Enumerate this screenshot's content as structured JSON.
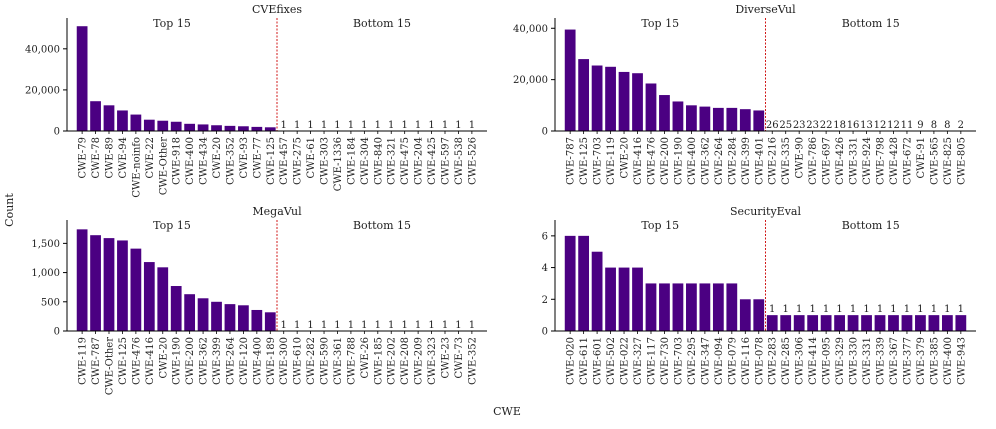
{
  "figure": {
    "ylabel": "Count",
    "xlabel": "CWE",
    "section_labels": {
      "top": "Top 15",
      "bottom": "Bottom 15"
    },
    "colors": {
      "bar": "#4b0082",
      "divider": "#cc0000",
      "axis": "#000000",
      "text": "#222222"
    }
  },
  "chart_data": [
    {
      "type": "bar",
      "title": "CVEfixes",
      "ylim": [
        0,
        55000
      ],
      "yticks": [
        0,
        20000,
        40000
      ],
      "ytick_labels": [
        "0",
        "20,000",
        "40,000"
      ],
      "top_categories": [
        "CWE-79",
        "CWE-78",
        "CWE-89",
        "CWE-94",
        "CWE-noinfo",
        "CWE-22",
        "CWE-Other",
        "CWE-918",
        "CWE-400",
        "CWE-434",
        "CWE-20",
        "CWE-352",
        "CWE-93",
        "CWE-77",
        "CWE-125"
      ],
      "top_values": [
        51000,
        14500,
        12500,
        10000,
        8000,
        5500,
        5000,
        4500,
        3500,
        3200,
        2800,
        2500,
        2300,
        2000,
        1800
      ],
      "top_value_labels": [
        "",
        "",
        "",
        "",
        "",
        "",
        "",
        "",
        "",
        "",
        "",
        "",
        "",
        "",
        ""
      ],
      "bottom_categories": [
        "CWE-457",
        "CWE-275",
        "CWE-61",
        "CWE-303",
        "CWE-1336",
        "CWE-184",
        "CWE-304",
        "CWE-840",
        "CWE-321",
        "CWE-475",
        "CWE-204",
        "CWE-425",
        "CWE-597",
        "CWE-538",
        "CWE-526"
      ],
      "bottom_values": [
        1,
        1,
        1,
        1,
        1,
        1,
        1,
        1,
        1,
        1,
        1,
        1,
        1,
        1,
        1
      ],
      "bottom_value_labels": [
        "1",
        "1",
        "1",
        "1",
        "1",
        "1",
        "1",
        "1",
        "1",
        "1",
        "1",
        "1",
        "1",
        "1",
        "1"
      ]
    },
    {
      "type": "bar",
      "title": "DiverseVul",
      "ylim": [
        0,
        44000
      ],
      "yticks": [
        0,
        20000,
        40000
      ],
      "ytick_labels": [
        "0",
        "20,000",
        "40,000"
      ],
      "top_categories": [
        "CWE-787",
        "CWE-125",
        "CWE-703",
        "CWE-119",
        "CWE-20",
        "CWE-416",
        "CWE-476",
        "CWE-200",
        "CWE-190",
        "CWE-400",
        "CWE-362",
        "CWE-264",
        "CWE-284",
        "CWE-399",
        "CWE-401"
      ],
      "top_values": [
        39500,
        28000,
        25500,
        25000,
        23000,
        22500,
        18500,
        14000,
        11500,
        10000,
        9500,
        9000,
        9000,
        8500,
        8000
      ],
      "top_value_labels": [
        "",
        "",
        "",
        "",
        "",
        "",
        "",
        "",
        "",
        "",
        "",
        "",
        "",
        "",
        ""
      ],
      "bottom_categories": [
        "CWE-216",
        "CWE-335",
        "CWE-90",
        "CWE-786",
        "CWE-697",
        "CWE-426",
        "CWE-331",
        "CWE-924",
        "CWE-798",
        "CWE-428",
        "CWE-672",
        "CWE-91",
        "CWE-565",
        "CWE-825",
        "CWE-805"
      ],
      "bottom_values": [
        26,
        25,
        23,
        23,
        22,
        18,
        16,
        13,
        12,
        12,
        11,
        9,
        8,
        8,
        2
      ],
      "bottom_value_labels": [
        "26",
        "25",
        "23",
        "23",
        "22",
        "18",
        "16",
        "13",
        "12",
        "12",
        "11",
        "9",
        "8",
        "8",
        "2"
      ]
    },
    {
      "type": "bar",
      "title": "MegaVul",
      "ylim": [
        0,
        1900
      ],
      "yticks": [
        0,
        500,
        1000,
        1500
      ],
      "ytick_labels": [
        "0",
        "500",
        "1,000",
        "1,500"
      ],
      "top_categories": [
        "CWE-119",
        "CWE-787",
        "CWE-Other",
        "CWE-125",
        "CWE-476",
        "CWE-416",
        "CWE-20",
        "CWE-190",
        "CWE-200",
        "CWE-362",
        "CWE-399",
        "CWE-264",
        "CWE-120",
        "CWE-400",
        "CWE-189"
      ],
      "top_values": [
        1740,
        1640,
        1590,
        1550,
        1410,
        1180,
        1090,
        770,
        630,
        560,
        500,
        460,
        440,
        360,
        320
      ],
      "top_value_labels": [
        "",
        "",
        "",
        "",
        "",
        "",
        "",
        "",
        "",
        "",
        "",
        "",
        "",
        "",
        ""
      ],
      "bottom_categories": [
        "CWE-300",
        "CWE-610",
        "CWE-282",
        "CWE-590",
        "CWE-361",
        "CWE-788",
        "CWE-26",
        "CWE-185",
        "CWE-202",
        "CWE-208",
        "CWE-209",
        "CWE-323",
        "CWE-23",
        "CWE-73",
        "CWE-352"
      ],
      "bottom_values": [
        1,
        1,
        1,
        1,
        1,
        1,
        1,
        1,
        1,
        1,
        1,
        1,
        1,
        1,
        1
      ],
      "bottom_value_labels": [
        "1",
        "1",
        "1",
        "1",
        "1",
        "1",
        "1",
        "1",
        "1",
        "1",
        "1",
        "1",
        "1",
        "1",
        "1"
      ]
    },
    {
      "type": "bar",
      "title": "SecurityEval",
      "ylim": [
        0,
        7
      ],
      "yticks": [
        0,
        2,
        4,
        6
      ],
      "ytick_labels": [
        "0",
        "2",
        "4",
        "6"
      ],
      "top_categories": [
        "CWE-020",
        "CWE-611",
        "CWE-601",
        "CWE-502",
        "CWE-022",
        "CWE-327",
        "CWE-117",
        "CWE-730",
        "CWE-703",
        "CWE-295",
        "CWE-347",
        "CWE-094",
        "CWE-079",
        "CWE-116",
        "CWE-078"
      ],
      "top_values": [
        6,
        6,
        5,
        4,
        4,
        4,
        3,
        3,
        3,
        3,
        3,
        3,
        3,
        2,
        2
      ],
      "top_value_labels": [
        "",
        "",
        "",
        "",
        "",
        "",
        "",
        "",
        "",
        "",
        "",
        "",
        "",
        "",
        ""
      ],
      "bottom_categories": [
        "CWE-283",
        "CWE-285",
        "CWE-306",
        "CWE-414",
        "CWE-095",
        "CWE-329",
        "CWE-330",
        "CWE-331",
        "CWE-339",
        "CWE-367",
        "CWE-377",
        "CWE-379",
        "CWE-385",
        "CWE-400",
        "CWE-943"
      ],
      "bottom_values": [
        1,
        1,
        1,
        1,
        1,
        1,
        1,
        1,
        1,
        1,
        1,
        1,
        1,
        1,
        1
      ],
      "bottom_value_labels": [
        "1",
        "1",
        "1",
        "1",
        "1",
        "1",
        "1",
        "1",
        "1",
        "1",
        "1",
        "1",
        "1",
        "1",
        "1"
      ]
    }
  ]
}
